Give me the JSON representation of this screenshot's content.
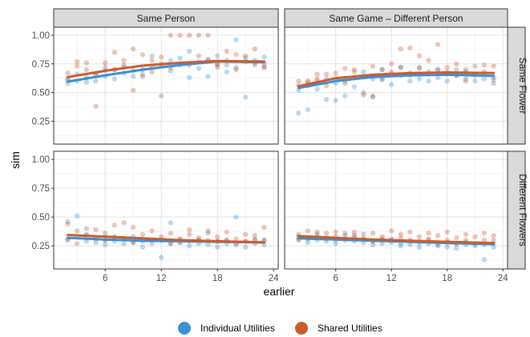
{
  "chart_data": {
    "type": "scatter",
    "xlabel": "earlier",
    "ylabel": "sim",
    "xlim": [
      0.5,
      24.5
    ],
    "xticks": [
      6,
      12,
      18,
      24
    ],
    "xtick_labels": [
      "6",
      "12",
      "18",
      "24"
    ],
    "ylim": [
      0.05,
      1.07
    ],
    "yticks": [
      0.25,
      0.5,
      0.75,
      1.0
    ],
    "ytick_labels": [
      "0.25",
      "0.50",
      "0.75",
      "1.00"
    ],
    "grid": true,
    "legend_position": "bottom",
    "col_facets": [
      "Same Person",
      "Same Game – Different Person"
    ],
    "row_facets": [
      "Same Flower",
      "Different Flowers"
    ],
    "series": [
      {
        "name": "Individual Utilities",
        "color": "#3a8fd6"
      },
      {
        "name": "Shared Utilities",
        "color": "#cc5a2d"
      }
    ],
    "panels": [
      {
        "col": 0,
        "row": 0,
        "trends": [
          {
            "series": 0,
            "x": [
              2,
              6,
              10,
              14,
              18,
              23
            ],
            "y": [
              0.595,
              0.65,
              0.7,
              0.74,
              0.77,
              0.765
            ]
          },
          {
            "series": 1,
            "x": [
              2,
              6,
              10,
              14,
              18,
              23
            ],
            "y": [
              0.635,
              0.69,
              0.735,
              0.76,
              0.775,
              0.77
            ]
          }
        ],
        "points": [
          {
            "series": 0,
            "x": [
              2,
              2,
              3,
              3,
              4,
              4,
              5,
              5,
              6,
              6,
              7,
              7,
              8,
              8,
              9,
              9,
              10,
              10,
              11,
              11,
              12,
              12,
              13,
              13,
              14,
              14,
              15,
              15,
              16,
              16,
              17,
              17,
              18,
              18,
              19,
              19,
              20,
              20,
              21,
              21,
              22,
              22,
              23,
              23
            ],
            "y": [
              0.58,
              0.62,
              0.6,
              0.66,
              0.63,
              0.59,
              0.66,
              0.6,
              0.64,
              0.69,
              0.62,
              0.7,
              0.67,
              0.72,
              0.64,
              0.69,
              0.7,
              0.66,
              0.73,
              0.82,
              0.74,
              0.47,
              0.69,
              0.78,
              0.75,
              0.8,
              0.86,
              0.63,
              0.71,
              0.77,
              0.79,
              0.64,
              0.82,
              0.72,
              0.74,
              0.68,
              0.96,
              0.72,
              0.46,
              0.8,
              0.78,
              0.74,
              0.81,
              0.72
            ]
          },
          {
            "series": 1,
            "x": [
              2,
              2,
              3,
              3,
              4,
              4,
              5,
              5,
              6,
              6,
              7,
              7,
              8,
              8,
              9,
              9,
              10,
              10,
              11,
              11,
              12,
              12,
              13,
              13,
              14,
              14,
              15,
              15,
              16,
              16,
              17,
              17,
              18,
              18,
              19,
              19,
              20,
              20,
              21,
              21,
              22,
              22,
              23,
              23
            ],
            "y": [
              0.61,
              0.67,
              0.73,
              0.77,
              0.7,
              0.76,
              0.38,
              0.66,
              0.76,
              0.72,
              0.85,
              0.7,
              0.74,
              0.78,
              0.52,
              0.88,
              0.83,
              0.64,
              0.78,
              0.68,
              0.81,
              0.75,
              1.0,
              0.72,
              1.0,
              0.74,
              0.74,
              1.0,
              0.82,
              1.0,
              0.78,
              1.0,
              0.75,
              0.74,
              0.78,
              0.86,
              0.83,
              0.7,
              0.77,
              0.82,
              0.88,
              0.76,
              0.75,
              0.72
            ]
          }
        ]
      },
      {
        "col": 1,
        "row": 0,
        "trends": [
          {
            "series": 0,
            "x": [
              2,
              6,
              10,
              14,
              18,
              23
            ],
            "y": [
              0.54,
              0.6,
              0.635,
              0.65,
              0.655,
              0.645
            ]
          },
          {
            "series": 1,
            "x": [
              2,
              6,
              10,
              14,
              18,
              23
            ],
            "y": [
              0.555,
              0.625,
              0.655,
              0.67,
              0.675,
              0.67
            ]
          }
        ],
        "points": [
          {
            "series": 0,
            "x": [
              2,
              2,
              3,
              3,
              4,
              4,
              5,
              5,
              6,
              6,
              7,
              7,
              8,
              8,
              9,
              9,
              10,
              10,
              11,
              11,
              12,
              12,
              13,
              13,
              14,
              14,
              15,
              15,
              16,
              16,
              17,
              17,
              18,
              18,
              19,
              19,
              20,
              20,
              21,
              21,
              22,
              22,
              23,
              23
            ],
            "y": [
              0.32,
              0.52,
              0.35,
              0.56,
              0.53,
              0.6,
              0.44,
              0.62,
              0.43,
              0.58,
              0.6,
              0.47,
              0.63,
              0.55,
              0.5,
              0.68,
              0.46,
              0.62,
              0.61,
              0.7,
              0.57,
              0.66,
              0.65,
              0.72,
              0.6,
              0.67,
              0.62,
              0.71,
              0.66,
              0.6,
              0.63,
              0.7,
              0.6,
              0.66,
              0.65,
              0.7,
              0.62,
              0.68,
              0.6,
              0.65,
              0.66,
              0.62,
              0.63,
              0.58
            ]
          },
          {
            "series": 1,
            "x": [
              2,
              2,
              3,
              3,
              4,
              4,
              5,
              5,
              6,
              6,
              7,
              7,
              8,
              8,
              9,
              9,
              10,
              10,
              11,
              11,
              12,
              12,
              13,
              13,
              14,
              14,
              15,
              15,
              16,
              16,
              17,
              17,
              18,
              18,
              19,
              19,
              20,
              20,
              21,
              21,
              22,
              22,
              23,
              23
            ],
            "y": [
              0.6,
              0.56,
              0.59,
              0.6,
              0.66,
              0.62,
              0.56,
              0.66,
              0.67,
              0.62,
              0.71,
              0.58,
              0.68,
              0.7,
              0.48,
              0.64,
              0.47,
              0.73,
              0.7,
              0.62,
              0.75,
              0.68,
              0.88,
              0.72,
              0.89,
              0.65,
              0.72,
              0.82,
              0.78,
              0.68,
              0.92,
              0.7,
              0.68,
              0.72,
              0.75,
              0.65,
              0.7,
              0.6,
              0.73,
              0.66,
              0.74,
              0.68,
              0.73,
              0.61
            ]
          }
        ]
      },
      {
        "col": 0,
        "row": 1,
        "trends": [
          {
            "series": 0,
            "x": [
              2,
              6,
              10,
              14,
              18,
              23
            ],
            "y": [
              0.32,
              0.305,
              0.295,
              0.29,
              0.285,
              0.28
            ]
          },
          {
            "series": 1,
            "x": [
              2,
              6,
              10,
              14,
              18,
              23
            ],
            "y": [
              0.345,
              0.33,
              0.315,
              0.3,
              0.29,
              0.28
            ]
          }
        ],
        "points": [
          {
            "series": 0,
            "x": [
              2,
              2,
              3,
              3,
              4,
              4,
              5,
              5,
              6,
              6,
              7,
              7,
              8,
              8,
              9,
              9,
              10,
              10,
              11,
              11,
              12,
              12,
              13,
              13,
              14,
              14,
              15,
              15,
              16,
              16,
              17,
              17,
              18,
              18,
              19,
              19,
              20,
              20,
              21,
              21,
              22,
              22,
              23,
              23
            ],
            "y": [
              0.46,
              0.3,
              0.51,
              0.33,
              0.29,
              0.35,
              0.31,
              0.28,
              0.3,
              0.26,
              0.29,
              0.32,
              0.27,
              0.31,
              0.28,
              0.33,
              0.29,
              0.24,
              0.3,
              0.27,
              0.15,
              0.3,
              0.27,
              0.45,
              0.28,
              0.31,
              0.25,
              0.29,
              0.27,
              0.3,
              0.36,
              0.26,
              0.29,
              0.24,
              0.27,
              0.3,
              0.5,
              0.26,
              0.29,
              0.24,
              0.27,
              0.31,
              0.3,
              0.26
            ]
          },
          {
            "series": 1,
            "x": [
              2,
              2,
              3,
              3,
              4,
              4,
              5,
              5,
              6,
              6,
              7,
              7,
              8,
              8,
              9,
              9,
              10,
              10,
              11,
              11,
              12,
              12,
              13,
              13,
              14,
              14,
              15,
              15,
              16,
              16,
              17,
              17,
              18,
              18,
              19,
              19,
              20,
              20,
              21,
              21,
              22,
              22,
              23,
              23
            ],
            "y": [
              0.31,
              0.44,
              0.27,
              0.38,
              0.4,
              0.34,
              0.32,
              0.39,
              0.36,
              0.3,
              0.43,
              0.33,
              0.45,
              0.31,
              0.28,
              0.41,
              0.35,
              0.31,
              0.3,
              0.38,
              0.33,
              0.3,
              0.27,
              0.36,
              0.31,
              0.28,
              0.39,
              0.35,
              0.3,
              0.32,
              0.38,
              0.3,
              0.29,
              0.33,
              0.37,
              0.3,
              0.27,
              0.31,
              0.29,
              0.35,
              0.3,
              0.34,
              0.41,
              0.3
            ]
          }
        ]
      },
      {
        "col": 1,
        "row": 1,
        "trends": [
          {
            "series": 0,
            "x": [
              2,
              6,
              10,
              14,
              18,
              23
            ],
            "y": [
              0.315,
              0.305,
              0.295,
              0.285,
              0.275,
              0.265
            ]
          },
          {
            "series": 1,
            "x": [
              2,
              6,
              10,
              14,
              18,
              23
            ],
            "y": [
              0.335,
              0.32,
              0.305,
              0.295,
              0.285,
              0.275
            ]
          }
        ],
        "points": [
          {
            "series": 0,
            "x": [
              2,
              2,
              3,
              3,
              4,
              4,
              5,
              5,
              6,
              6,
              7,
              7,
              8,
              8,
              9,
              9,
              10,
              10,
              11,
              11,
              12,
              12,
              13,
              13,
              14,
              14,
              15,
              15,
              16,
              16,
              17,
              17,
              18,
              18,
              19,
              19,
              20,
              20,
              21,
              21,
              22,
              22,
              23,
              23
            ],
            "y": [
              0.3,
              0.33,
              0.28,
              0.31,
              0.3,
              0.35,
              0.29,
              0.32,
              0.3,
              0.27,
              0.31,
              0.34,
              0.29,
              0.33,
              0.28,
              0.31,
              0.29,
              0.26,
              0.3,
              0.27,
              0.28,
              0.31,
              0.27,
              0.25,
              0.29,
              0.26,
              0.24,
              0.28,
              0.27,
              0.3,
              0.26,
              0.25,
              0.28,
              0.24,
              0.27,
              0.23,
              0.26,
              0.28,
              0.25,
              0.27,
              0.13,
              0.26,
              0.24,
              0.27
            ]
          },
          {
            "series": 1,
            "x": [
              2,
              2,
              3,
              3,
              4,
              4,
              5,
              5,
              6,
              6,
              7,
              7,
              8,
              8,
              9,
              9,
              10,
              10,
              11,
              11,
              12,
              12,
              13,
              13,
              14,
              14,
              15,
              15,
              16,
              16,
              17,
              17,
              18,
              18,
              19,
              19,
              20,
              20,
              21,
              21,
              22,
              22,
              23,
              23
            ],
            "y": [
              0.35,
              0.31,
              0.38,
              0.32,
              0.33,
              0.37,
              0.36,
              0.31,
              0.37,
              0.33,
              0.36,
              0.3,
              0.37,
              0.34,
              0.31,
              0.35,
              0.29,
              0.36,
              0.33,
              0.31,
              0.38,
              0.3,
              0.35,
              0.32,
              0.37,
              0.3,
              0.33,
              0.29,
              0.36,
              0.31,
              0.34,
              0.28,
              0.37,
              0.3,
              0.32,
              0.27,
              0.35,
              0.3,
              0.33,
              0.27,
              0.36,
              0.3,
              0.34,
              0.3
            ]
          }
        ]
      }
    ]
  }
}
